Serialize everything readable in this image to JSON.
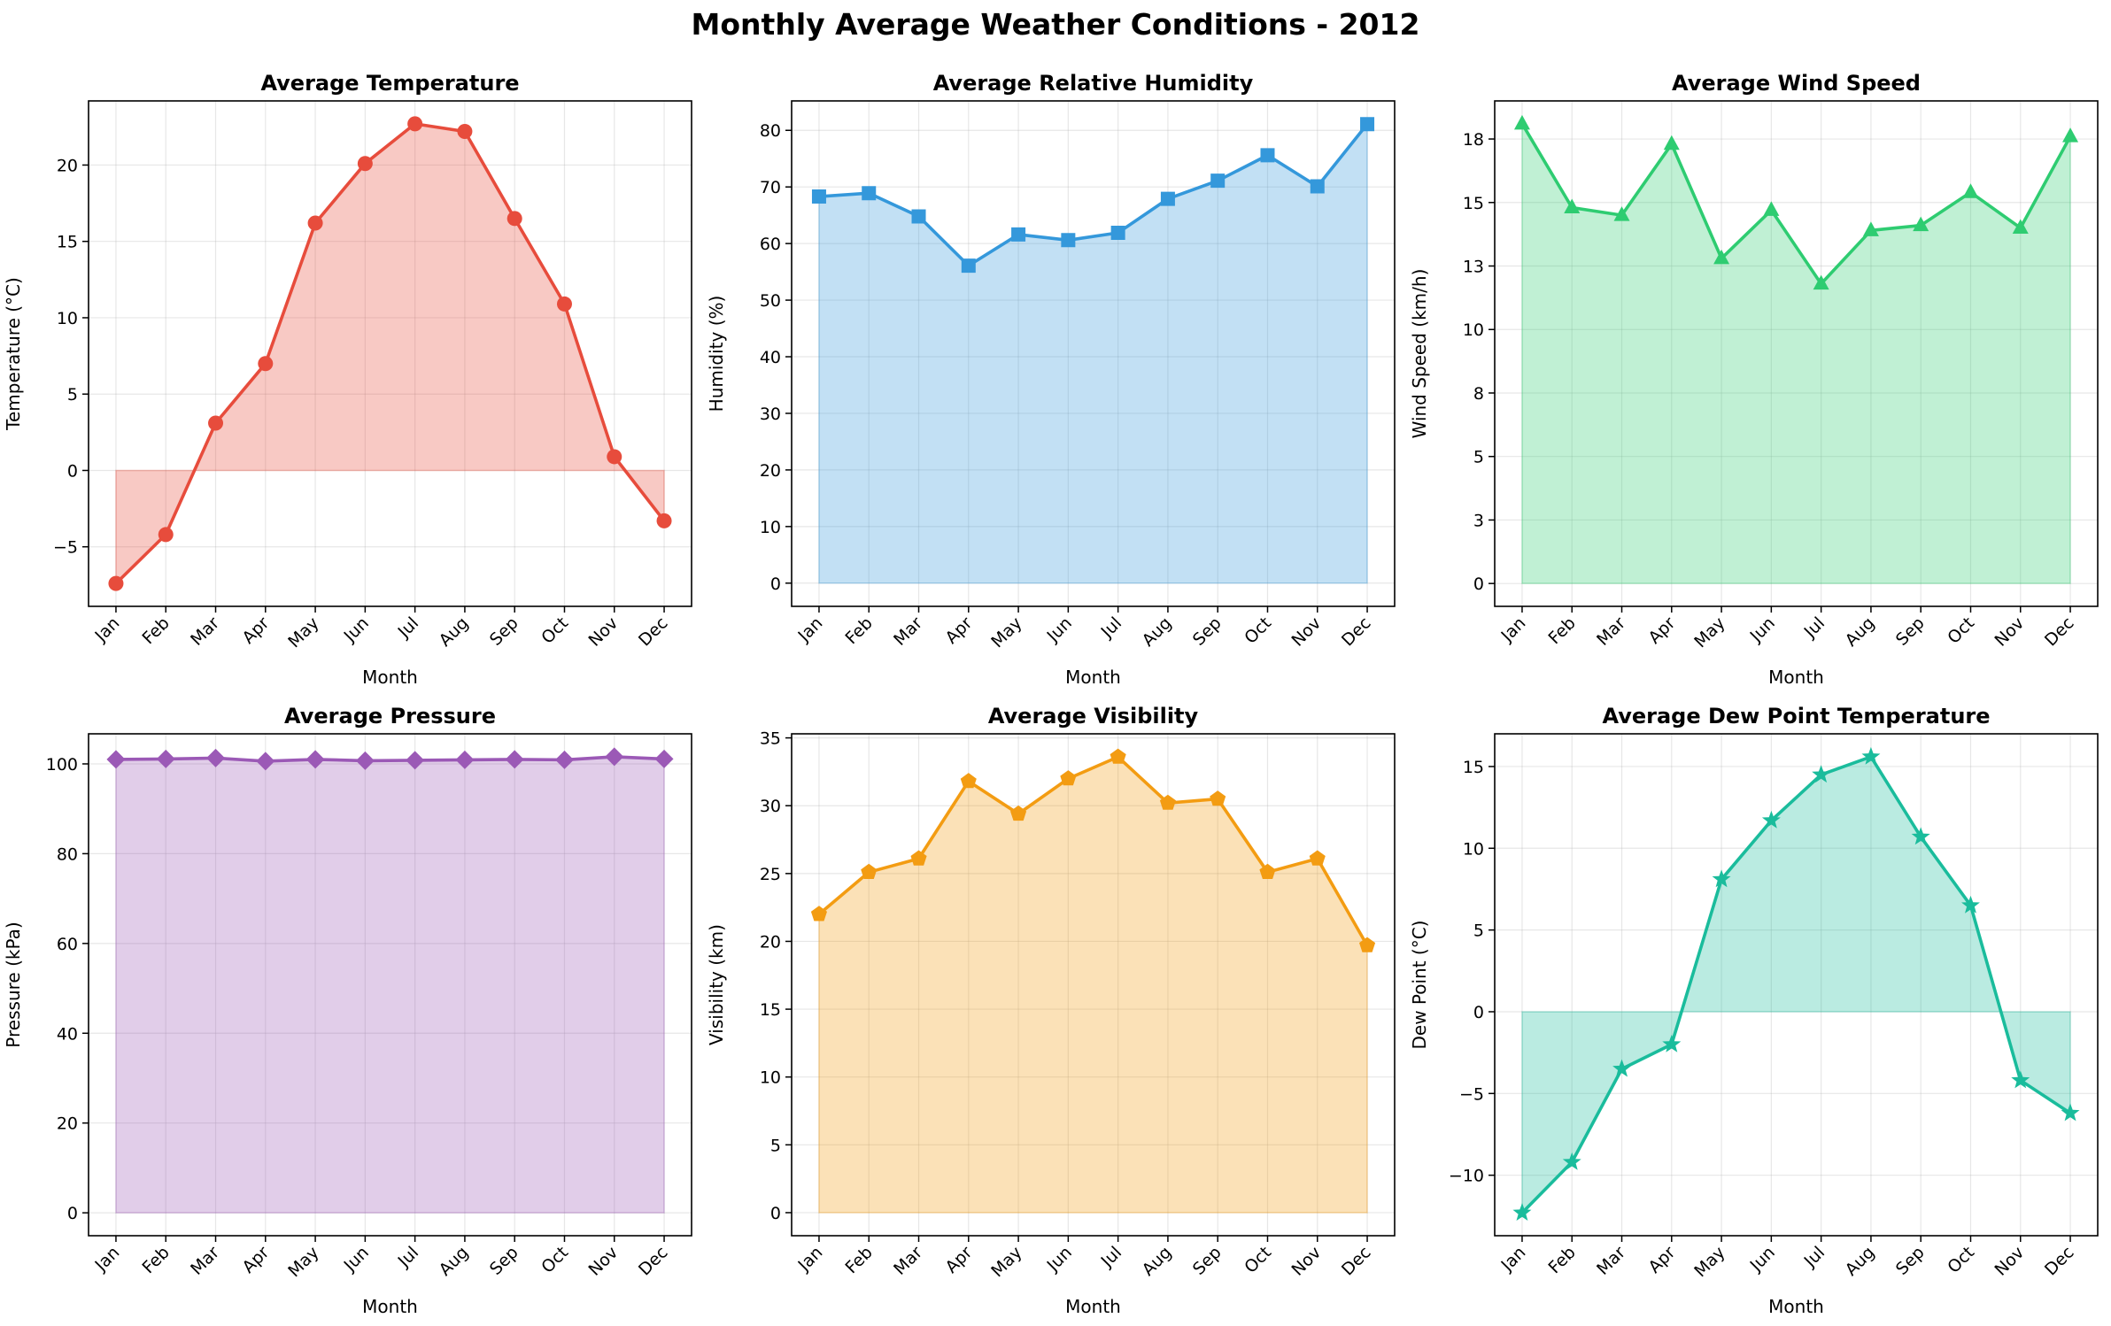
{
  "figure": {
    "suptitle": "Monthly Average Weather Conditions - 2012"
  },
  "chart_data": [
    {
      "type": "area",
      "title": "Average Temperature",
      "xlabel": "Month",
      "ylabel": "Temperature (°C)",
      "categories": [
        "Jan",
        "Feb",
        "Mar",
        "Apr",
        "May",
        "Jun",
        "Jul",
        "Aug",
        "Sep",
        "Oct",
        "Nov",
        "Dec"
      ],
      "values": [
        -7.4,
        -4.2,
        3.1,
        7.0,
        16.2,
        20.1,
        22.7,
        22.2,
        16.5,
        10.9,
        0.9,
        -3.3
      ],
      "ylim": [
        -8.9,
        24.2
      ],
      "yticks": [
        -5,
        0,
        5,
        10,
        15,
        20
      ],
      "color": "#e74c3c",
      "marker": "circle",
      "grid": true
    },
    {
      "type": "area",
      "title": "Average Relative Humidity",
      "xlabel": "Month",
      "ylabel": "Humidity (%)",
      "categories": [
        "Jan",
        "Feb",
        "Mar",
        "Apr",
        "May",
        "Jun",
        "Jul",
        "Aug",
        "Sep",
        "Oct",
        "Nov",
        "Dec"
      ],
      "values": [
        68.3,
        68.9,
        64.8,
        56.1,
        61.6,
        60.6,
        61.9,
        67.9,
        71.1,
        75.6,
        70.1,
        81.1
      ],
      "ylim": [
        -4.1,
        85.2
      ],
      "yticks": [
        0,
        10,
        20,
        30,
        40,
        50,
        60,
        70,
        80
      ],
      "color": "#3498db",
      "marker": "square",
      "grid": true
    },
    {
      "type": "area",
      "title": "Average Wind Speed",
      "xlabel": "Month",
      "ylabel": "Wind Speed (km/h)",
      "categories": [
        "Jan",
        "Feb",
        "Mar",
        "Apr",
        "May",
        "Jun",
        "Jul",
        "Aug",
        "Sep",
        "Oct",
        "Nov",
        "Dec"
      ],
      "values": [
        18.1,
        14.8,
        14.5,
        17.3,
        12.8,
        14.7,
        11.8,
        13.9,
        14.1,
        15.4,
        14.0,
        17.6
      ],
      "ylim": [
        -0.9,
        19.0
      ],
      "yticks": [
        0.0,
        2.5,
        5.0,
        7.5,
        10.0,
        12.5,
        15.0,
        17.5
      ],
      "color": "#2ecc71",
      "marker": "triangle",
      "grid": true
    },
    {
      "type": "area",
      "title": "Average Pressure",
      "xlabel": "Month",
      "ylabel": "Pressure (kPa)",
      "categories": [
        "Jan",
        "Feb",
        "Mar",
        "Apr",
        "May",
        "Jun",
        "Jul",
        "Aug",
        "Sep",
        "Oct",
        "Nov",
        "Dec"
      ],
      "values": [
        101.0,
        101.1,
        101.3,
        100.6,
        101.0,
        100.7,
        100.8,
        100.9,
        101.0,
        100.9,
        101.6,
        101.1
      ],
      "ylim": [
        -5.1,
        106.7
      ],
      "yticks": [
        0,
        20,
        40,
        60,
        80,
        100
      ],
      "color": "#9b59b6",
      "marker": "diamond",
      "grid": true
    },
    {
      "type": "area",
      "title": "Average Visibility",
      "xlabel": "Month",
      "ylabel": "Visibility (km)",
      "categories": [
        "Jan",
        "Feb",
        "Mar",
        "Apr",
        "May",
        "Jun",
        "Jul",
        "Aug",
        "Sep",
        "Oct",
        "Nov",
        "Dec"
      ],
      "values": [
        22.0,
        25.1,
        26.1,
        31.8,
        29.4,
        32.0,
        33.6,
        30.2,
        30.5,
        25.1,
        26.1,
        19.7
      ],
      "ylim": [
        -1.7,
        35.3
      ],
      "yticks": [
        0,
        5,
        10,
        15,
        20,
        25,
        30,
        35
      ],
      "color": "#f39c12",
      "marker": "pentagon",
      "grid": true
    },
    {
      "type": "area",
      "title": "Average Dew Point Temperature",
      "xlabel": "Month",
      "ylabel": "Dew Point (°C)",
      "categories": [
        "Jan",
        "Feb",
        "Mar",
        "Apr",
        "May",
        "Jun",
        "Jul",
        "Aug",
        "Sep",
        "Oct",
        "Nov",
        "Dec"
      ],
      "values": [
        -12.3,
        -9.2,
        -3.5,
        -2.0,
        8.1,
        11.7,
        14.5,
        15.6,
        10.7,
        6.5,
        -4.2,
        -6.2
      ],
      "ylim": [
        -13.7,
        17.0
      ],
      "yticks": [
        -10,
        -5,
        0,
        5,
        10,
        15
      ],
      "color": "#1abc9c",
      "marker": "star",
      "grid": true
    }
  ]
}
